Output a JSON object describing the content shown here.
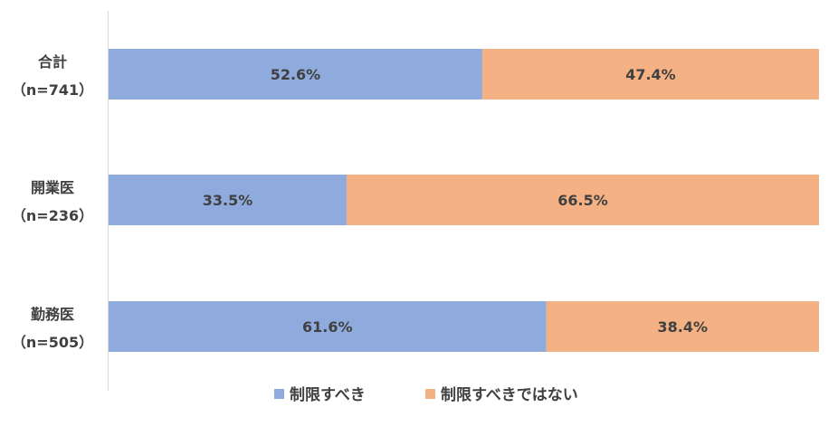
{
  "chart_data": {
    "type": "bar",
    "orientation": "horizontal",
    "stacked": "percent",
    "categories": [
      {
        "name": "合計",
        "n": "（n=741）"
      },
      {
        "name": "開業医",
        "n": "（n=236）"
      },
      {
        "name": "勤務医",
        "n": "（n=505）"
      }
    ],
    "series": [
      {
        "name": "制限すべき",
        "values": [
          52.6,
          33.5,
          61.6
        ],
        "labels": [
          "52.6%",
          "33.5%",
          "61.6%"
        ],
        "color": "#8FAADC"
      },
      {
        "name": "制限すべきではない",
        "values": [
          47.4,
          66.5,
          38.4
        ],
        "labels": [
          "47.4%",
          "66.5%",
          "38.4%"
        ],
        "color": "#F4B183"
      }
    ],
    "xlim": [
      0,
      100
    ],
    "grid": false,
    "legend": "bottom"
  }
}
